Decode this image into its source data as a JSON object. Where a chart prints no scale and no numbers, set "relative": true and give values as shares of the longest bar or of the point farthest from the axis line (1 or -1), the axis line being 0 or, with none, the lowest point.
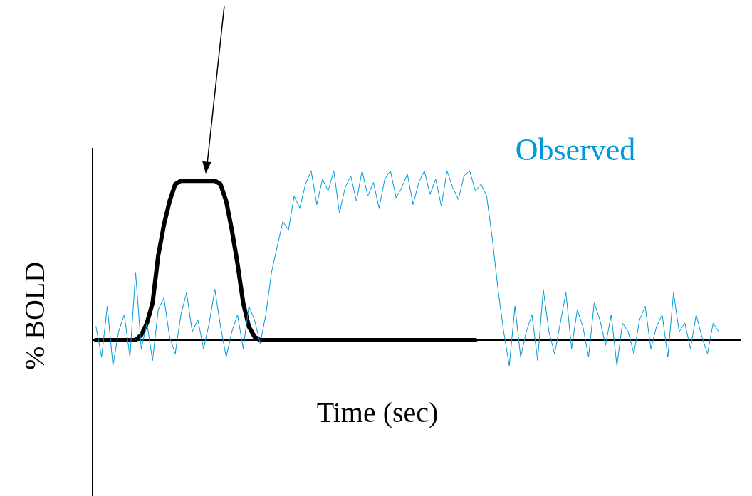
{
  "chart_data": {
    "type": "line",
    "relative": true,
    "xlabel": "Time (sec)",
    "ylabel": "% BOLD",
    "categories": [
      null,
      null,
      null,
      null,
      null,
      null,
      null,
      null,
      null,
      null,
      null,
      null,
      null,
      null,
      null,
      null,
      null,
      null,
      null,
      null,
      null,
      null,
      null,
      null,
      null,
      null,
      null,
      null,
      null,
      null,
      null,
      null,
      null,
      null,
      null,
      null,
      null,
      null,
      null,
      null,
      null,
      null,
      null,
      null,
      null,
      null,
      null,
      null,
      null,
      null,
      null,
      null,
      null,
      null,
      null,
      null,
      null,
      null,
      null,
      null,
      null,
      null,
      null,
      null,
      null,
      null,
      null,
      null,
      null,
      null,
      null,
      null,
      null,
      null,
      null,
      null,
      null,
      null,
      null,
      null,
      null,
      null,
      null,
      null,
      null,
      null,
      null,
      null,
      null,
      null,
      null,
      null,
      null,
      null,
      null,
      null,
      null,
      null,
      null,
      null,
      null,
      null,
      null,
      null,
      null,
      null,
      null,
      null,
      null,
      null,
      null
    ],
    "series": [
      {
        "color": "#000000",
        "values": [
          0,
          0,
          0,
          0,
          0,
          0,
          0,
          0,
          0.03,
          0.1,
          0.22,
          0.5,
          0.68,
          0.82,
          0.92,
          0.94,
          0.94,
          0.94,
          0.94,
          0.94,
          0.94,
          0.94,
          0.92,
          0.82,
          0.65,
          0.45,
          0.22,
          0.08,
          0.02,
          0,
          0,
          0,
          0,
          0,
          0,
          0,
          0,
          0,
          0,
          0,
          0,
          0,
          0,
          0,
          0,
          0,
          0,
          0,
          0,
          0,
          0,
          0,
          0,
          0,
          0,
          0,
          0,
          0,
          0,
          0,
          0,
          0,
          0,
          0,
          0,
          0,
          0,
          0,
          null,
          null,
          null,
          null,
          null,
          null,
          null,
          null,
          null,
          null,
          null,
          null,
          null,
          null,
          null,
          null,
          null,
          null,
          null,
          null,
          null,
          null,
          null,
          null,
          null,
          null,
          null,
          null,
          null,
          null,
          null,
          null,
          null,
          null,
          null,
          null,
          null,
          null,
          null,
          null,
          null,
          null,
          null
        ]
      },
      {
        "name": "Observed",
        "color": "#0099d8",
        "values": [
          0.08,
          -0.1,
          0.2,
          -0.15,
          0.05,
          0.15,
          -0.1,
          0.4,
          -0.05,
          0.1,
          -0.12,
          0.18,
          0.25,
          0.02,
          -0.08,
          0.15,
          0.28,
          0.05,
          0.12,
          -0.05,
          0.1,
          0.3,
          0.08,
          -0.1,
          0.05,
          0.15,
          -0.05,
          0.2,
          0.12,
          -0.02,
          0.15,
          0.4,
          0.55,
          0.7,
          0.65,
          0.85,
          0.78,
          0.92,
          1,
          0.8,
          0.95,
          0.88,
          1,
          0.75,
          0.9,
          0.97,
          0.82,
          1,
          0.85,
          0.93,
          0.78,
          0.95,
          1,
          0.84,
          0.9,
          0.98,
          0.8,
          0.93,
          1,
          0.86,
          0.95,
          0.79,
          1,
          0.9,
          0.83,
          0.97,
          1,
          0.88,
          0.92,
          0.85,
          0.6,
          0.3,
          0.05,
          -0.15,
          0.2,
          -0.1,
          0.05,
          0.15,
          -0.12,
          0.3,
          0.05,
          -0.08,
          0.1,
          0.28,
          -0.05,
          0.18,
          0.08,
          -0.1,
          0.22,
          0.12,
          -0.03,
          0.15,
          -0.15,
          0.1,
          0.05,
          -0.08,
          0.12,
          0.2,
          -0.05,
          0.08,
          0.15,
          -0.1,
          0.28,
          0.05,
          0.1,
          -0.05,
          0.15,
          0.02,
          -0.08,
          0.1,
          0.05
        ]
      }
    ]
  }
}
